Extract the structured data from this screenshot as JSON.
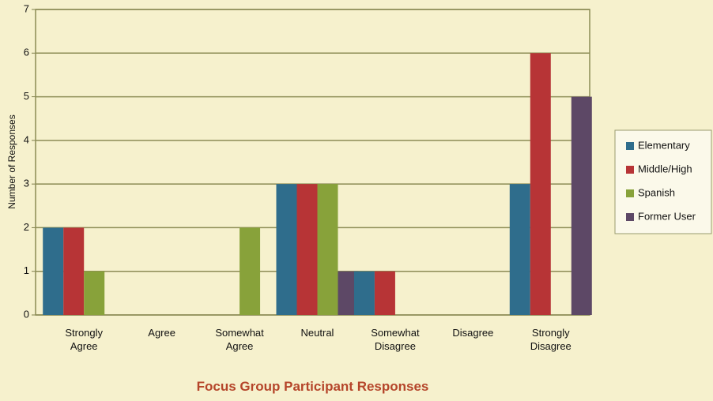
{
  "chart_data": {
    "type": "bar",
    "x_label": "Focus Group Participant Responses",
    "y_label": "Number of Responses",
    "categories": [
      "Strongly Agree",
      "Agree",
      "Somewhat Agree",
      "Neutral",
      "Somewhat Disagree",
      "Disagree",
      "Strongly Disagree"
    ],
    "series": [
      {
        "name": "Elementary",
        "color": "#2f6d8c",
        "values": [
          2,
          0,
          0,
          3,
          1,
          0,
          3
        ]
      },
      {
        "name": "Middle/High",
        "color": "#b73436",
        "values": [
          2,
          0,
          0,
          3,
          1,
          0,
          6
        ]
      },
      {
        "name": "Spanish",
        "color": "#88a23a",
        "values": [
          1,
          0,
          2,
          3,
          0,
          0,
          0
        ]
      },
      {
        "name": "Former User",
        "color": "#5d4866",
        "values": [
          0,
          0,
          0,
          1,
          0,
          0,
          5
        ]
      }
    ],
    "ylim": [
      0,
      7
    ],
    "yticks": [
      0,
      1,
      2,
      3,
      4,
      5,
      6,
      7
    ],
    "grid": true,
    "legend": "right"
  }
}
